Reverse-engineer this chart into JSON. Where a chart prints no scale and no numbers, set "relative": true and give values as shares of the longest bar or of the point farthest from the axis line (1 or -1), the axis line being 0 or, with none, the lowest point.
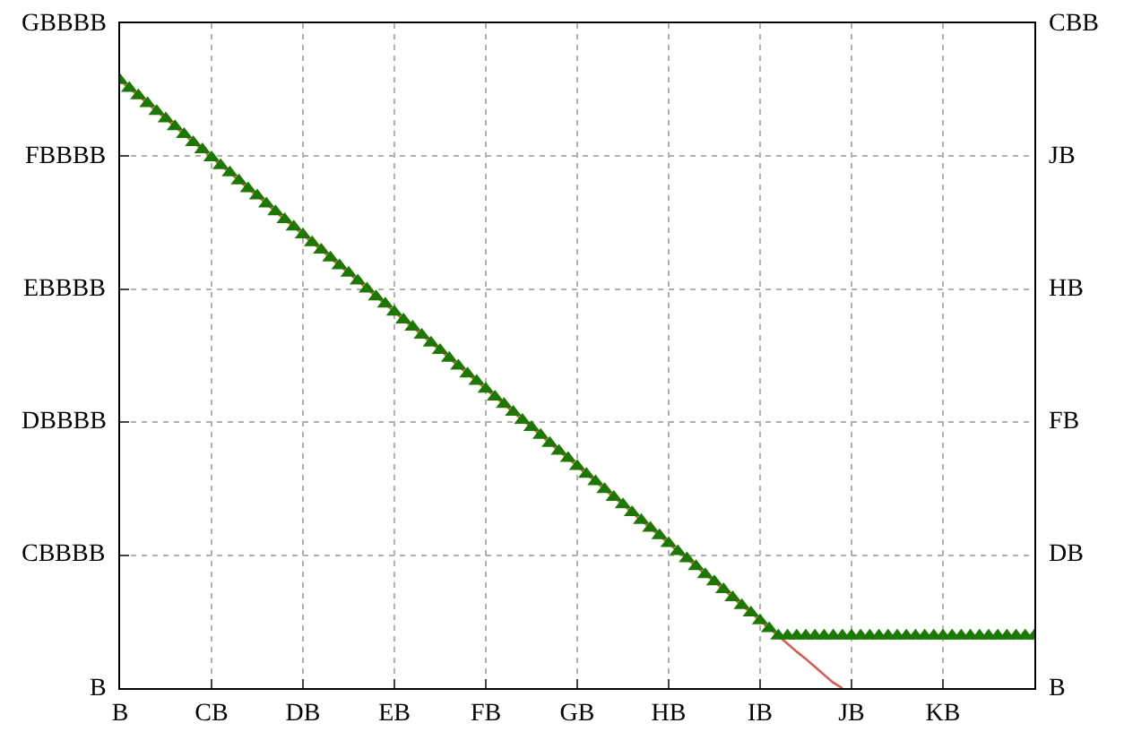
{
  "chart_data": {
    "type": "scatter",
    "relative": true,
    "categories": [
      "B",
      null,
      null,
      null,
      null,
      null,
      null,
      null,
      null,
      null,
      "CB",
      null,
      null,
      null,
      null,
      null,
      null,
      null,
      null,
      null,
      "DB",
      null,
      null,
      null,
      null,
      null,
      null,
      null,
      null,
      null,
      "EB",
      null,
      null,
      null,
      null,
      null,
      null,
      null,
      null,
      null,
      "FB",
      null,
      null,
      null,
      null,
      null,
      null,
      null,
      null,
      null,
      "GB",
      null,
      null,
      null,
      null,
      null,
      null,
      null,
      null,
      null,
      "HB",
      null,
      null,
      null,
      null,
      null,
      null,
      null,
      null,
      null,
      "IB",
      null,
      null,
      null,
      null,
      null,
      null,
      null,
      null,
      null,
      "JB",
      null,
      null,
      null,
      null,
      null,
      null,
      null,
      null,
      null,
      "KB",
      null,
      null,
      null,
      null,
      null,
      null,
      null,
      null,
      null,
      null
    ],
    "annotations": [
      "B",
      "CBBBB",
      "DBBBB",
      "EBBBB",
      "FBBBB",
      "GBBBB",
      "B",
      "DB",
      "FB",
      "HB",
      "JB",
      "CBB"
    ],
    "grid": true,
    "series": [
      {
        "type": "line",
        "color": "#e8504a",
        "line_style": "solid",
        "values": [
          1.0,
          0.987,
          0.975,
          0.962,
          0.949,
          0.937,
          0.924,
          0.911,
          0.898,
          0.886,
          0.873,
          0.86,
          0.848,
          0.835,
          0.822,
          0.81,
          0.797,
          0.784,
          0.771,
          0.759,
          0.746,
          0.733,
          0.721,
          0.708,
          0.695,
          0.683,
          0.67,
          0.657,
          0.644,
          0.632,
          0.619,
          0.606,
          0.594,
          0.581,
          0.568,
          0.556,
          0.543,
          0.53,
          0.517,
          0.505,
          0.492,
          0.479,
          0.467,
          0.454,
          0.441,
          0.429,
          0.416,
          0.403,
          0.39,
          0.378,
          0.365,
          0.352,
          0.34,
          0.327,
          0.314,
          0.302,
          0.289,
          0.276,
          0.263,
          0.251,
          0.238,
          0.225,
          0.213,
          0.2,
          0.187,
          0.175,
          0.162,
          0.149,
          0.136,
          0.124,
          0.111,
          0.098,
          0.086,
          0.073,
          0.06,
          0.048,
          0.035,
          0.022,
          0.009,
          0.0,
          null,
          null,
          null,
          null,
          null,
          null,
          null,
          null,
          null,
          null,
          null,
          null,
          null,
          null,
          null,
          null,
          null,
          null,
          null,
          null,
          null
        ]
      },
      {
        "color": "#1a7a00",
        "marker": "triangle",
        "values": [
          1.0,
          0.987,
          0.975,
          0.962,
          0.949,
          0.937,
          0.924,
          0.911,
          0.898,
          0.886,
          0.873,
          0.86,
          0.848,
          0.835,
          0.822,
          0.81,
          0.797,
          0.784,
          0.771,
          0.759,
          0.746,
          0.733,
          0.721,
          0.708,
          0.695,
          0.683,
          0.67,
          0.657,
          0.644,
          0.632,
          0.619,
          0.606,
          0.594,
          0.581,
          0.568,
          0.556,
          0.543,
          0.53,
          0.517,
          0.505,
          0.492,
          0.479,
          0.467,
          0.454,
          0.441,
          0.429,
          0.416,
          0.403,
          0.39,
          0.378,
          0.365,
          0.352,
          0.34,
          0.327,
          0.314,
          0.302,
          0.289,
          0.276,
          0.263,
          0.251,
          0.238,
          0.225,
          0.213,
          0.2,
          0.187,
          0.175,
          0.162,
          0.149,
          0.136,
          0.124,
          0.111,
          0.098,
          0.086,
          0.086,
          0.086,
          0.086,
          0.086,
          0.086,
          0.086,
          0.086,
          0.086,
          0.086,
          0.086,
          0.086,
          0.086,
          0.086,
          0.086,
          0.086,
          0.086,
          0.086,
          0.086,
          0.086,
          0.086,
          0.086,
          0.086,
          0.086,
          0.086,
          0.086,
          0.086,
          0.086,
          0.086
        ]
      }
    ]
  }
}
